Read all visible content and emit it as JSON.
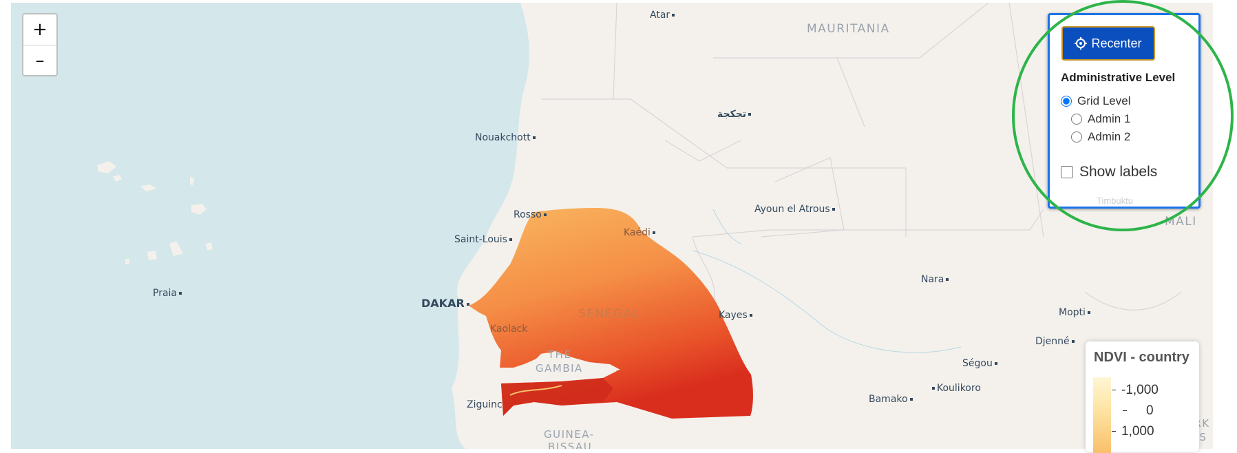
{
  "zoom": {
    "in_label": "+",
    "out_label": "–"
  },
  "places": {
    "atar": "Atar",
    "nouakchott": "Nouakchott",
    "tidjikja": "تجكجة",
    "rosso": "Rosso",
    "saint_louis": "Saint-Louis",
    "kaedi": "Kaédi",
    "ayoun": "Ayoun el Atrous",
    "praia": "Praia",
    "dakar": "DAKAR",
    "kaolack": "Kaolack",
    "kayes": "Kayes",
    "nara": "Nara",
    "mopti": "Mopti",
    "djenne": "Djenné",
    "segou": "Ségou",
    "koulikoro": "Koulikoro",
    "bamako": "Bamako",
    "ziguinchor": "Ziguinc",
    "timbuktu": "Timbuktu"
  },
  "countries": {
    "mauritania": "MAURITANIA",
    "senegal": "SENEGAL",
    "gambia_1": "THE",
    "gambia_2": "GAMBIA",
    "guinea_bissau_1": "GUINEA-",
    "guinea_bissau_2": "BISSAU",
    "mali": "MALI",
    "burkina_1": "BURK",
    "burkina_2": "FAS"
  },
  "panel": {
    "recenter_label": "Recenter",
    "admin_title": "Administrative Level",
    "options": [
      {
        "label": "Grid Level",
        "selected": true
      },
      {
        "label": "Admin 1",
        "selected": false
      },
      {
        "label": "Admin 2",
        "selected": false
      }
    ],
    "show_labels": "Show labels",
    "show_labels_checked": false
  },
  "legend": {
    "title": "NDVI - country",
    "ticks": [
      "-1,000",
      "0",
      "1,000"
    ]
  },
  "colors": {
    "ocean": "#d4e7ea",
    "land": "#f4f1ec",
    "accent": "#0b4fbf",
    "panel_border": "#1a73e8",
    "highlight_ring": "#2db44a"
  }
}
